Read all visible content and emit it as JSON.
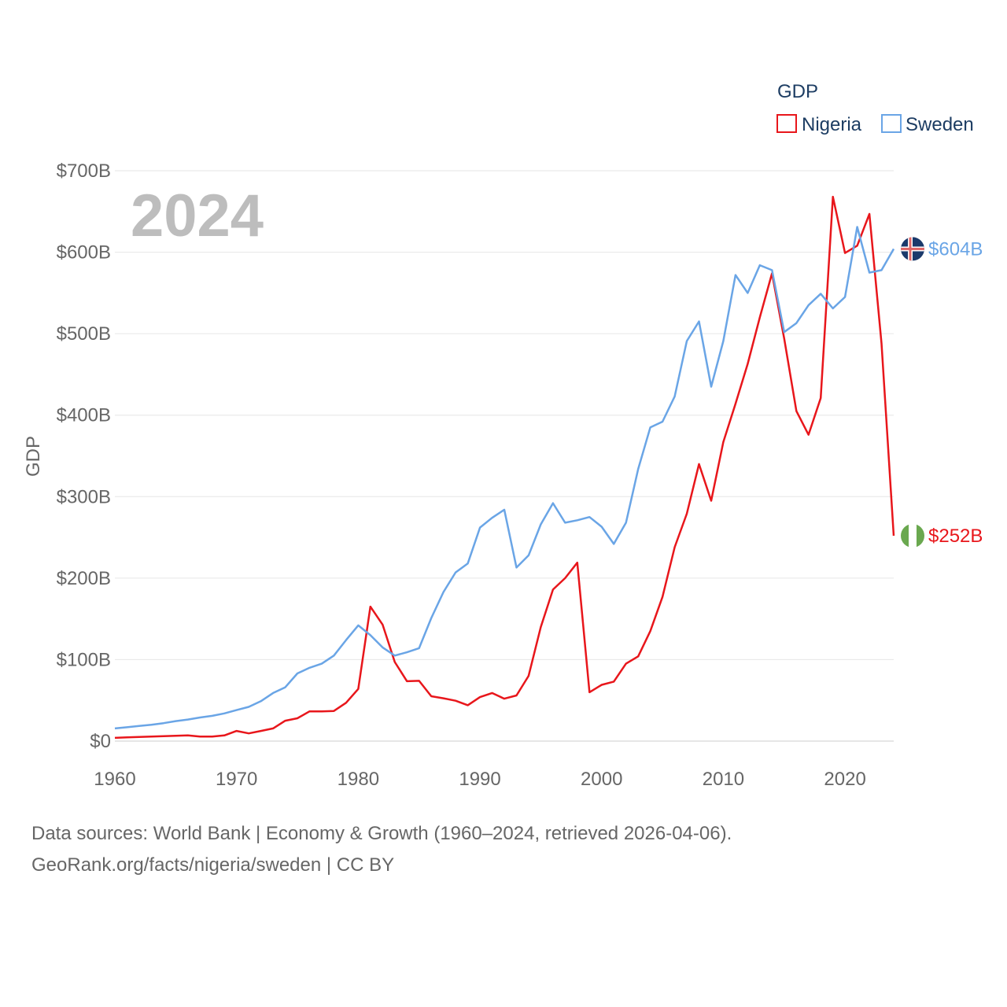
{
  "chart_data": {
    "type": "line",
    "year_label": "2024",
    "ylabel": "GDP",
    "xlabel": "",
    "xlim": [
      1960,
      2024
    ],
    "ylim": [
      0,
      700
    ],
    "y_ticks": [
      {
        "value": 0,
        "label": "$0"
      },
      {
        "value": 100,
        "label": "$100B"
      },
      {
        "value": 200,
        "label": "$200B"
      },
      {
        "value": 300,
        "label": "$300B"
      },
      {
        "value": 400,
        "label": "$400B"
      },
      {
        "value": 500,
        "label": "$500B"
      },
      {
        "value": 600,
        "label": "$600B"
      },
      {
        "value": 700,
        "label": "$700B"
      }
    ],
    "x_ticks": [
      {
        "value": 1960,
        "label": "1960"
      },
      {
        "value": 1970,
        "label": "1970"
      },
      {
        "value": 1980,
        "label": "1980"
      },
      {
        "value": 1990,
        "label": "1990"
      },
      {
        "value": 2000,
        "label": "2000"
      },
      {
        "value": 2010,
        "label": "2010"
      },
      {
        "value": 2020,
        "label": "2020"
      }
    ],
    "legend": {
      "title": "GDP",
      "position": "top-right"
    },
    "series": [
      {
        "name": "Nigeria",
        "color": "#e8161b",
        "end_label": "$252B",
        "x": [
          1960,
          1961,
          1962,
          1963,
          1964,
          1965,
          1966,
          1967,
          1968,
          1969,
          1970,
          1971,
          1972,
          1973,
          1974,
          1975,
          1976,
          1977,
          1978,
          1979,
          1980,
          1981,
          1982,
          1983,
          1984,
          1985,
          1986,
          1987,
          1988,
          1989,
          1990,
          1991,
          1992,
          1993,
          1994,
          1995,
          1996,
          1997,
          1998,
          1999,
          2000,
          2001,
          2002,
          2003,
          2004,
          2005,
          2006,
          2007,
          2008,
          2009,
          2010,
          2011,
          2012,
          2013,
          2014,
          2015,
          2016,
          2017,
          2018,
          2019,
          2020,
          2021,
          2022,
          2023,
          2024
        ],
        "values": [
          4,
          4.5,
          5,
          5.5,
          6,
          6.5,
          7,
          5.5,
          5.5,
          7,
          12.5,
          9.5,
          12.5,
          15.5,
          25,
          28,
          36.5,
          36.5,
          37,
          47,
          64,
          165,
          143,
          97,
          73.5,
          74,
          55,
          52.5,
          49.5,
          44,
          54,
          59,
          52,
          56,
          80,
          140,
          186,
          200,
          219,
          60,
          69,
          73,
          95,
          104,
          135,
          177,
          238,
          279,
          340,
          295,
          367,
          414,
          463,
          520,
          574,
          494,
          405,
          376,
          421,
          668,
          599,
          608,
          647,
          488,
          252
        ]
      },
      {
        "name": "Sweden",
        "color": "#6aa5e6",
        "end_label": "$604B",
        "x": [
          1960,
          1961,
          1962,
          1963,
          1964,
          1965,
          1966,
          1967,
          1968,
          1969,
          1970,
          1971,
          1972,
          1973,
          1974,
          1975,
          1976,
          1977,
          1978,
          1979,
          1980,
          1981,
          1982,
          1983,
          1984,
          1985,
          1986,
          1987,
          1988,
          1989,
          1990,
          1991,
          1992,
          1993,
          1994,
          1995,
          1996,
          1997,
          1998,
          1999,
          2000,
          2001,
          2002,
          2003,
          2004,
          2005,
          2006,
          2007,
          2008,
          2009,
          2010,
          2011,
          2012,
          2013,
          2014,
          2015,
          2016,
          2017,
          2018,
          2019,
          2020,
          2021,
          2022,
          2023,
          2024
        ],
        "values": [
          15.5,
          17,
          18.5,
          20,
          22,
          24.5,
          26.5,
          29,
          31,
          34,
          38,
          42,
          49,
          59,
          66,
          83,
          90,
          95,
          105,
          124,
          142,
          130,
          115,
          105,
          109,
          114,
          151,
          183,
          207,
          218,
          262,
          274,
          284,
          213,
          228,
          266,
          292,
          268,
          271,
          275,
          263,
          242,
          268,
          334,
          385,
          392,
          423,
          491,
          515,
          435,
          491,
          572,
          550,
          584,
          578,
          502,
          513,
          535,
          549,
          531,
          545,
          631,
          575,
          578,
          604
        ]
      }
    ]
  },
  "footer": {
    "line1": "Data sources: World Bank | Economy & Growth (1960–2024, retrieved 2026-04-06).",
    "line2": "GeoRank.org/facts/nigeria/sweden | CC BY"
  }
}
